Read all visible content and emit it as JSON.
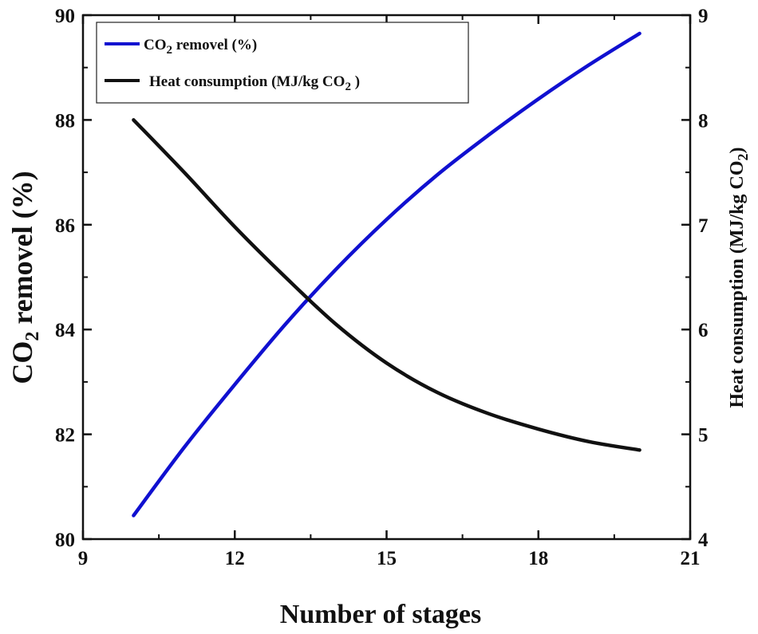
{
  "chart_data": {
    "type": "line",
    "x_axis": {
      "label": "Number of stages",
      "range": [
        9,
        21
      ],
      "ticks": [
        9,
        12,
        15,
        18,
        21
      ],
      "tick_labels": [
        "9",
        "12",
        "15",
        "18",
        "21"
      ]
    },
    "y_left": {
      "label_prefix": "CO",
      "label_sub": "2",
      "label_suffix": " removel (%)",
      "range": [
        80,
        90
      ],
      "ticks": [
        80,
        82,
        84,
        86,
        88,
        90
      ],
      "tick_labels": [
        "80",
        "82",
        "84",
        "86",
        "88",
        "90"
      ]
    },
    "y_right": {
      "label_prefix": "Heat consumption (MJ/kg CO",
      "label_sub": "2",
      "label_suffix": ")",
      "range": [
        4,
        9
      ],
      "ticks": [
        4,
        5,
        6,
        7,
        8,
        9
      ],
      "tick_labels": [
        "4",
        "5",
        "6",
        "7",
        "8",
        "9"
      ]
    },
    "series": [
      {
        "name": "CO2 removel (%)",
        "legend_prefix": "CO",
        "legend_sub": "2",
        "legend_suffix": " removel (%)",
        "axis": "left",
        "color": "#1010d0",
        "x": [
          10,
          11,
          12,
          13,
          14,
          15,
          16,
          17,
          18,
          19,
          20
        ],
        "y": [
          80.45,
          81.75,
          82.95,
          84.1,
          85.15,
          86.1,
          86.95,
          87.7,
          88.4,
          89.05,
          89.65
        ]
      },
      {
        "name": "Heat consumption (MJ/kg CO2 )",
        "legend_prefix": "Heat consumption (MJ/kg CO",
        "legend_sub": "2",
        "legend_suffix": " )",
        "axis": "right",
        "color": "#111111",
        "x": [
          10,
          11,
          12,
          13,
          14,
          15,
          16,
          17,
          18,
          19,
          20
        ],
        "y": [
          8.0,
          7.5,
          6.98,
          6.5,
          6.05,
          5.68,
          5.4,
          5.2,
          5.05,
          4.93,
          4.85
        ]
      }
    ],
    "legend": {
      "position": "top-left"
    },
    "grid": false
  }
}
